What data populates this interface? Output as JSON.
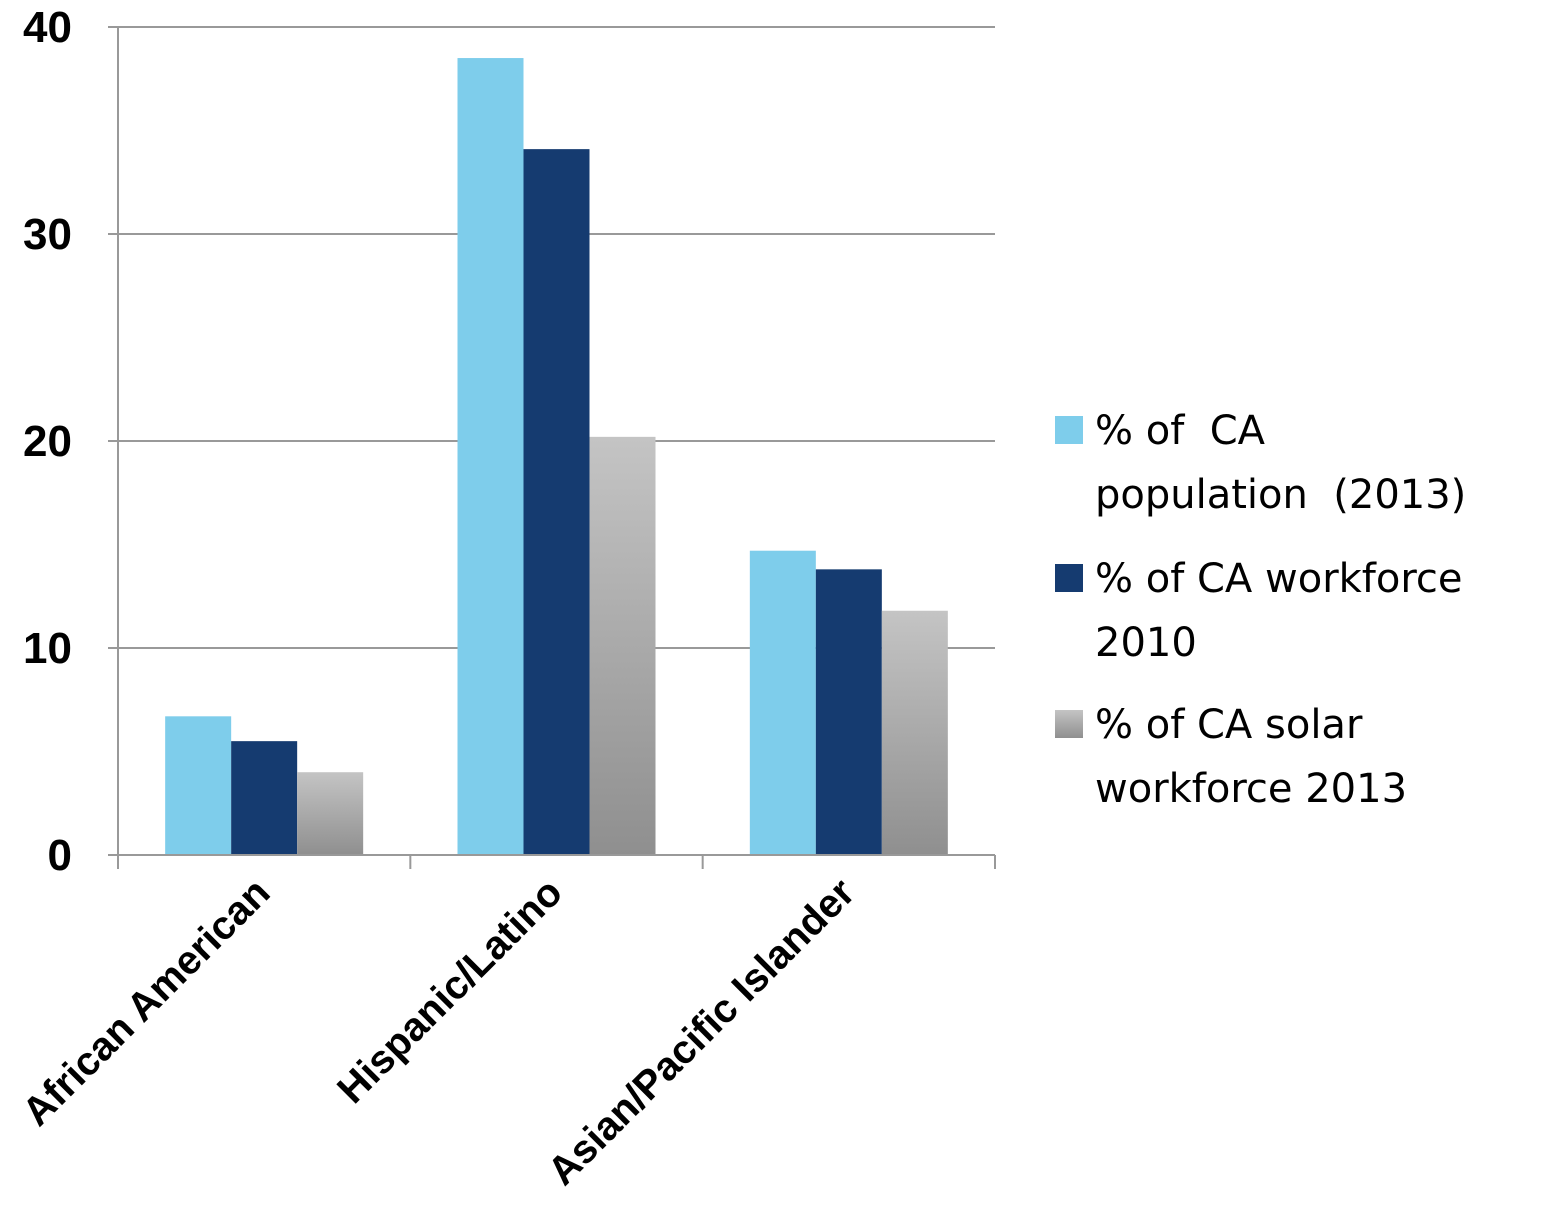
{
  "chart_data": {
    "type": "bar",
    "title": "",
    "xlabel": "",
    "ylabel": "",
    "ylim": [
      0,
      40
    ],
    "yticks": [
      0,
      10,
      20,
      30,
      40
    ],
    "grid": true,
    "legend_position": "right",
    "categories": [
      "African American",
      "Hispanic/Latino",
      "Asian/Pacific Islander"
    ],
    "series": [
      {
        "name": "% of  CA population (2013)",
        "legend_lines": [
          "% of  CA",
          "population  (2013)"
        ],
        "color": "#7ecdeb",
        "values": [
          6.7,
          38.5,
          14.7
        ]
      },
      {
        "name": "% of CA workforce 2010",
        "legend_lines": [
          "% of CA workforce",
          "2010"
        ],
        "color": "#153b70",
        "values": [
          5.5,
          34.1,
          13.8
        ]
      },
      {
        "name": "% of CA solar workforce 2013",
        "legend_lines": [
          "% of CA solar",
          "workforce 2013"
        ],
        "color": "#a6a6a6",
        "values": [
          4.0,
          20.2,
          11.8
        ]
      }
    ]
  }
}
